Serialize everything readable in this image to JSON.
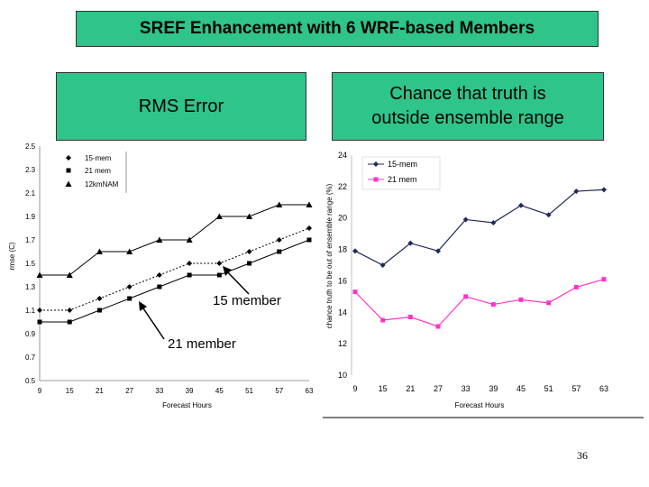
{
  "slide": {
    "title": "SREF Enhancement with 6 WRF-based Members",
    "rms_label": "RMS Error",
    "chance_label_line1": "Chance that truth is",
    "chance_label_line2": "outside ensemble range",
    "page_number": "36",
    "accent_color": "#2fc48a"
  },
  "chart_data": [
    {
      "type": "line",
      "title": "",
      "xlabel": "Forecast Hours",
      "ylabel": "rmse (C)",
      "x": [
        9,
        15,
        21,
        27,
        33,
        39,
        45,
        51,
        57,
        63
      ],
      "ylim": [
        0.5,
        2.5
      ],
      "yticks": [
        "2.5",
        "2.3",
        "2.1",
        "1.9",
        "1.7",
        "1.5",
        "1.3",
        "1.1",
        "0.9",
        "0.7",
        "0.5"
      ],
      "legend_position": "top-left",
      "series": [
        {
          "name": "15-mem",
          "marker": "diamond",
          "style": "dotted",
          "color": "#000000",
          "values": [
            1.1,
            1.1,
            1.2,
            1.3,
            1.4,
            1.5,
            1.5,
            1.6,
            1.7,
            1.8
          ]
        },
        {
          "name": "21 mem",
          "marker": "square",
          "style": "solid",
          "color": "#000000",
          "values": [
            1.0,
            1.0,
            1.1,
            1.2,
            1.3,
            1.4,
            1.4,
            1.5,
            1.6,
            1.7
          ]
        },
        {
          "name": "12kmNAM",
          "marker": "triangle",
          "style": "solid",
          "color": "#000000",
          "values": [
            1.4,
            1.4,
            1.6,
            1.6,
            1.7,
            1.7,
            1.9,
            1.9,
            2.0,
            2.0
          ]
        }
      ],
      "annotations": [
        "15 member",
        "21 member"
      ]
    },
    {
      "type": "line",
      "title": "",
      "xlabel": "Forecast Hours",
      "ylabel": "chance truth to be out of ensemble range (%)",
      "x": [
        9,
        15,
        21,
        27,
        33,
        39,
        45,
        51,
        57,
        63
      ],
      "ylim": [
        10,
        24
      ],
      "yticks": [
        "24",
        "22",
        "20",
        "18",
        "16",
        "14",
        "12",
        "10"
      ],
      "legend_position": "top-left",
      "series": [
        {
          "name": "15-mem",
          "marker": "diamond",
          "color": "#1f2a5a",
          "values": [
            17.9,
            17.0,
            18.4,
            17.9,
            19.9,
            19.7,
            20.8,
            20.2,
            21.7,
            21.8
          ]
        },
        {
          "name": "21 mem",
          "marker": "square",
          "color": "#ff33cc",
          "values": [
            15.3,
            13.5,
            13.7,
            13.1,
            15.0,
            14.5,
            14.8,
            14.6,
            15.6,
            16.1
          ]
        }
      ]
    }
  ]
}
